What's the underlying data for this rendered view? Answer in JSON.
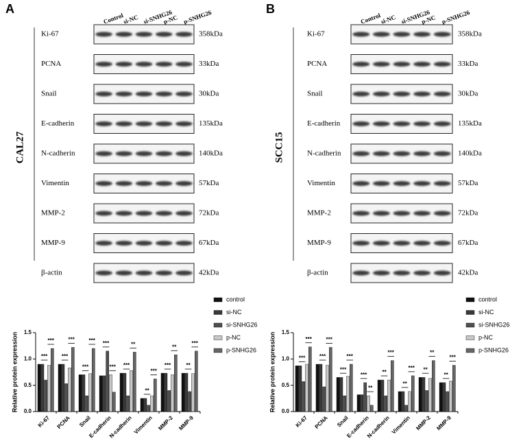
{
  "panels": [
    {
      "letter": "A",
      "cell_line": "CAL27",
      "lanes": [
        "Control",
        "si-NC",
        "si-SNHG26",
        "p-NC",
        "p-SNHG26"
      ],
      "proteins": [
        "Ki-67",
        "PCNA",
        "Snail",
        "E-cadherin",
        "N-cadherin",
        "Vimentin",
        "MMP-2",
        "MMP-9",
        "β-actin"
      ],
      "sizes": [
        "358kDa",
        "33kDa",
        "30kDa",
        "135kDa",
        "140kDa",
        "57kDa",
        "72kDa",
        "67kDa",
        "42kDa"
      ]
    },
    {
      "letter": "B",
      "cell_line": "SCC15",
      "lanes": [
        "Control",
        "si-NC",
        "si-SNHG26",
        "p-NC",
        "p-SNHG26"
      ],
      "proteins": [
        "Ki-67",
        "PCNA",
        "Snail",
        "E-cadherin",
        "N-cadherin",
        "Vimentin",
        "MMP-2",
        "MMP-9",
        "β-actin"
      ],
      "sizes": [
        "358kDa",
        "33kDa",
        "30kDa",
        "135kDa",
        "140kDa",
        "57kDa",
        "72kDa",
        "67kDa",
        "42kDa"
      ]
    }
  ],
  "chart_data": [
    {
      "type": "bar",
      "ylabel": "Relative protein expression",
      "categories": [
        "Ki-67",
        "PCNA",
        "Snail",
        "E-cadherin",
        "N-cadherin",
        "Vimentin",
        "MMP-2",
        "MMP-9"
      ],
      "series": [
        {
          "name": "control",
          "color": "#111111",
          "values": [
            0.9,
            0.9,
            0.7,
            0.68,
            0.73,
            0.25,
            0.73,
            0.73
          ]
        },
        {
          "name": "si-NC",
          "color": "#3a3a3a",
          "values": [
            0.9,
            0.9,
            0.7,
            0.68,
            0.73,
            0.25,
            0.73,
            0.73
          ]
        },
        {
          "name": "si-SNHG26",
          "color": "#4f4f4f",
          "values": [
            0.6,
            0.53,
            0.3,
            1.15,
            0.3,
            0.12,
            0.4,
            0.38
          ]
        },
        {
          "name": "p-NC",
          "color": "#c8c8c8",
          "values": [
            0.88,
            0.83,
            0.72,
            0.7,
            0.78,
            0.3,
            0.7,
            0.72
          ]
        },
        {
          "name": "p-SNHG26",
          "color": "#666666",
          "values": [
            1.2,
            1.22,
            1.2,
            0.37,
            1.13,
            0.62,
            1.08,
            1.15
          ]
        }
      ],
      "significance": [
        [
          "***",
          "***"
        ],
        [
          "***",
          "***"
        ],
        [
          "***",
          "***"
        ],
        [
          "***",
          "***"
        ],
        [
          "***",
          "**"
        ],
        [
          "**",
          "***"
        ],
        [
          "***",
          "**"
        ],
        [
          "**",
          "***"
        ]
      ],
      "ylim": [
        0,
        1.5
      ],
      "yticks": [
        {
          "value": 0,
          "label": "0.0"
        },
        {
          "value": 0.5,
          "label": "0.5"
        },
        {
          "value": 1,
          "label": "1.0"
        },
        {
          "value": 1.5,
          "label": "1.5"
        }
      ]
    },
    {
      "type": "bar",
      "ylabel": "Relative protein expression",
      "categories": [
        "Ki-67",
        "PCNA",
        "Snail",
        "E-cadherin",
        "N-cadherin",
        "Vimentin",
        "MMP-2",
        "MMP-9"
      ],
      "series": [
        {
          "name": "control",
          "color": "#111111",
          "values": [
            0.87,
            0.9,
            0.65,
            0.32,
            0.6,
            0.38,
            0.65,
            0.55
          ]
        },
        {
          "name": "si-NC",
          "color": "#3a3a3a",
          "values": [
            0.87,
            0.9,
            0.65,
            0.32,
            0.6,
            0.38,
            0.65,
            0.55
          ]
        },
        {
          "name": "si-SNHG26",
          "color": "#4f4f4f",
          "values": [
            0.57,
            0.47,
            0.3,
            0.55,
            0.3,
            0.12,
            0.4,
            0.38
          ]
        },
        {
          "name": "p-NC",
          "color": "#c8c8c8",
          "values": [
            0.9,
            0.88,
            0.67,
            0.3,
            0.6,
            0.38,
            0.63,
            0.58
          ]
        },
        {
          "name": "p-SNHG26",
          "color": "#666666",
          "values": [
            1.23,
            1.22,
            0.9,
            0.12,
            0.97,
            0.68,
            0.97,
            0.88
          ]
        }
      ],
      "significance": [
        [
          "***",
          "***"
        ],
        [
          "***",
          "***"
        ],
        [
          "***",
          "***"
        ],
        [
          "***",
          "**"
        ],
        [
          "**",
          "***"
        ],
        [
          "**",
          "***"
        ],
        [
          "**",
          "**"
        ],
        [
          "**",
          "***"
        ]
      ],
      "ylim": [
        0,
        1.5
      ],
      "yticks": [
        {
          "value": 0,
          "label": "0.0"
        },
        {
          "value": 0.5,
          "label": "0.5"
        },
        {
          "value": 1,
          "label": "1.0"
        },
        {
          "value": 1.5,
          "label": "1.5"
        }
      ]
    }
  ]
}
